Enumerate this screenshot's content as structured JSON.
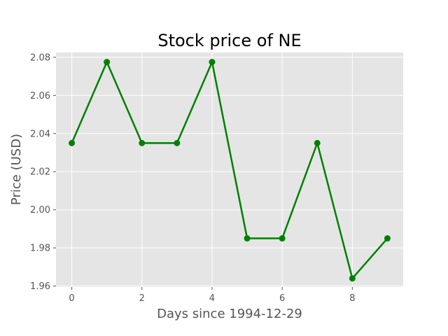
{
  "chart_data": {
    "type": "line",
    "title": "Stock price of NE",
    "xlabel": "Days since 1994-12-29",
    "ylabel": "Price (USD)",
    "x": [
      0,
      1,
      2,
      3,
      4,
      5,
      6,
      7,
      8,
      9
    ],
    "series": [
      {
        "values": [
          2.035,
          2.0775,
          2.035,
          2.035,
          2.0775,
          1.985,
          1.985,
          2.035,
          1.964,
          1.985
        ]
      }
    ],
    "xticks": [
      0,
      2,
      4,
      6,
      8
    ],
    "xtick_labels": [
      "0",
      "2",
      "4",
      "6",
      "8"
    ],
    "yticks": [
      1.96,
      1.98,
      2.0,
      2.02,
      2.04,
      2.06,
      2.08
    ],
    "ytick_labels": [
      "1.96",
      "1.98",
      "2.00",
      "2.02",
      "2.04",
      "2.06",
      "2.08"
    ],
    "xlim": [
      -0.45,
      9.45
    ],
    "ylim": [
      1.9595,
      2.0825
    ],
    "grid": true,
    "style": "ggplot",
    "colors": {
      "line": "#008000",
      "plot_background": "#e5e5e5",
      "grid": "#ffffff",
      "text": "#555555"
    }
  }
}
